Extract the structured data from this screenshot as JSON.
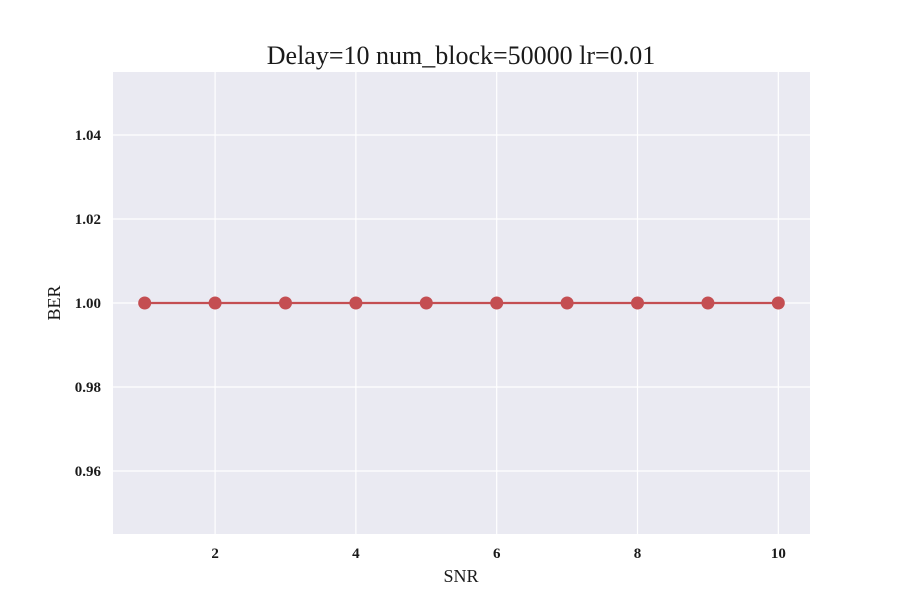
{
  "chart_data": {
    "type": "line",
    "title": "Delay=10 num_block=50000 lr=0.01",
    "xlabel": "SNR",
    "ylabel": "BER",
    "xlim": [
      0.55,
      10.45
    ],
    "ylim": [
      0.945,
      1.055
    ],
    "x_ticks": [
      2,
      4,
      6,
      8,
      10
    ],
    "x_tick_labels": [
      "2",
      "4",
      "6",
      "8",
      "10"
    ],
    "y_ticks": [
      0.96,
      0.98,
      1.0,
      1.02,
      1.04
    ],
    "y_tick_labels": [
      "0.96",
      "0.98",
      "1.00",
      "1.02",
      "1.04"
    ],
    "grid": true,
    "series": [
      {
        "name": "BER",
        "color": "#c44e52",
        "marker": "circle",
        "x": [
          1,
          2,
          3,
          4,
          5,
          6,
          7,
          8,
          9,
          10
        ],
        "y": [
          1.0,
          1.0,
          1.0,
          1.0,
          1.0,
          1.0,
          1.0,
          1.0,
          1.0,
          1.0
        ]
      }
    ],
    "colors": {
      "plot_background": "#eaeaf2",
      "grid": "#ffffff"
    }
  }
}
